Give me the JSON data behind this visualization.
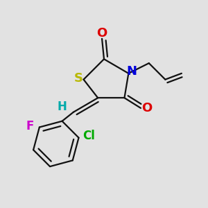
{
  "background_color": "#e2e2e2",
  "figsize": [
    3.0,
    3.0
  ],
  "dpi": 100,
  "atom_colors": {
    "S": "#b8b800",
    "N": "#0000dd",
    "O": "#dd0000",
    "H": "#00aaaa",
    "F": "#cc00cc",
    "Cl": "#00aa00",
    "C": "#111111"
  },
  "bond_color": "#111111",
  "bond_lw": 1.6
}
